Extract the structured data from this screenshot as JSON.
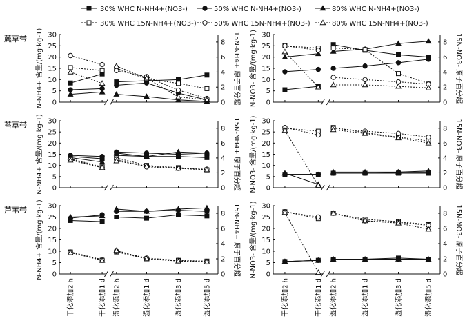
{
  "legend": [
    {
      "label": "30% WHC N-NH4+(NO3-)",
      "marker": "square",
      "filled": true,
      "dashed": false
    },
    {
      "label": "50% WHC N-NH4+(NO3-)",
      "marker": "circle",
      "filled": true,
      "dashed": false
    },
    {
      "label": "80% WHC N-NH4+(NO3-)",
      "marker": "triangle",
      "filled": true,
      "dashed": false
    },
    {
      "label": "30% WHC 15N-NH4+(NO3-)",
      "marker": "square",
      "filled": false,
      "dashed": true
    },
    {
      "label": "50% WHC 15N-NH4+(NO3-)",
      "marker": "circle",
      "filled": false,
      "dashed": true
    },
    {
      "label": "80% WHC 15N-NH4+(NO3-)",
      "marker": "triangle",
      "filled": false,
      "dashed": true
    }
  ],
  "row_labels": [
    "藨草带",
    "苔草带",
    "芦苇带"
  ],
  "x_categories": [
    "干化添加2 h",
    "干化添加1 d",
    "湿化添加2 h",
    "湿化添加1 d",
    "湿化添加3 d",
    "湿化添加5 d"
  ],
  "axis_labels": {
    "left_nh4": "N-NH4+ 含量/(mg·kg-1)",
    "right_nh4": "15N-NH4+ 原子百分超",
    "left_no3": "N-NO3- 含量/(mg·kg-1)",
    "right_no3": "15N-NO3- 原子百分超"
  },
  "y_left_ticks": [
    "0",
    "5",
    "10",
    "15",
    "20",
    "25",
    "30"
  ],
  "y_right_ticks": [
    "0",
    "2",
    "4",
    "6",
    "8"
  ],
  "chart_data": [
    {
      "type": "line",
      "row": "藨草带",
      "variable": "NH4",
      "ylim": [
        0,
        30
      ],
      "y2lim": [
        0,
        9
      ],
      "series": [
        {
          "name": "30% WHC N-NH4+",
          "axis": "left",
          "values": [
            8.5,
            12.5,
            9,
            9.5,
            10,
            12
          ]
        },
        {
          "name": "50% WHC N-NH4+",
          "axis": "left",
          "values": [
            5.5,
            6,
            7.5,
            8.5,
            4,
            1
          ]
        },
        {
          "name": "80% WHC N-NH4+",
          "axis": "left",
          "values": [
            3.5,
            4.5,
            3.5,
            2.5,
            1,
            0.3
          ]
        },
        {
          "name": "30% WHC 15N-NH4+",
          "axis": "right",
          "values": [
            4.6,
            4.2,
            4.5,
            3.1,
            2.5,
            1.8
          ]
        },
        {
          "name": "50% WHC 15N-NH4+",
          "axis": "right",
          "values": [
            6.2,
            5.0,
            4.2,
            3.4,
            1.6,
            0.5
          ]
        },
        {
          "name": "80% WHC 15N-NH4+",
          "axis": "right",
          "values": [
            4.0,
            2.5,
            4.8,
            3.2,
            0.7,
            0.3
          ]
        }
      ]
    },
    {
      "type": "line",
      "row": "藨草带",
      "variable": "NO3",
      "ylim": [
        0,
        30
      ],
      "y2lim": [
        0,
        9
      ],
      "series": [
        {
          "name": "30% WHC N-NO3-",
          "axis": "left",
          "values": [
            5.5,
            7,
            25.5,
            23,
            21,
            20
          ]
        },
        {
          "name": "50% WHC N-NO3-",
          "axis": "left",
          "values": [
            13.5,
            14.5,
            15,
            16,
            17.5,
            19
          ]
        },
        {
          "name": "80% WHC N-NO3-",
          "axis": "left",
          "values": [
            20,
            21.5,
            22.5,
            23.5,
            26,
            27
          ]
        },
        {
          "name": "30% WHC 15N-NO3-",
          "axis": "right",
          "values": [
            7.5,
            7.2,
            7.2,
            7.0,
            3.8,
            2.5
          ]
        },
        {
          "name": "50% WHC 15N-NO3-",
          "axis": "right",
          "values": [
            7.5,
            6.9,
            3.3,
            3.0,
            2.7,
            2.4
          ]
        },
        {
          "name": "80% WHC 15N-NO3-",
          "axis": "right",
          "values": [
            6.7,
            2.0,
            2.3,
            2.3,
            2.1,
            1.9
          ]
        }
      ]
    },
    {
      "type": "line",
      "row": "苔草带",
      "variable": "NH4",
      "ylim": [
        0,
        30
      ],
      "y2lim": [
        0,
        9
      ],
      "series": [
        {
          "name": "30% WHC N-NH4+",
          "axis": "left",
          "values": [
            14,
            13,
            14.5,
            14,
            14,
            13.5
          ]
        },
        {
          "name": "50% WHC N-NH4+",
          "axis": "left",
          "values": [
            14.5,
            14,
            16,
            15.5,
            15,
            15.5
          ]
        },
        {
          "name": "80% WHC N-NH4+",
          "axis": "left",
          "values": [
            13.5,
            11.5,
            15.5,
            14,
            16,
            15.5
          ]
        },
        {
          "name": "30% WHC 15N-NH4+",
          "axis": "right",
          "values": [
            3.9,
            2.8,
            4.0,
            3.0,
            2.7,
            2.4
          ]
        },
        {
          "name": "50% WHC 15N-NH4+",
          "axis": "right",
          "values": [
            3.8,
            2.7,
            3.8,
            2.8,
            2.6,
            2.5
          ]
        },
        {
          "name": "80% WHC 15N-NH4+",
          "axis": "right",
          "values": [
            3.7,
            2.7,
            3.6,
            2.9,
            2.6,
            2.4
          ]
        }
      ]
    },
    {
      "type": "line",
      "row": "苔草带",
      "variable": "NO3",
      "ylim": [
        0,
        30
      ],
      "y2lim": [
        0,
        9
      ],
      "series": [
        {
          "name": "30% WHC N-NO3-",
          "axis": "left",
          "values": [
            6,
            6,
            6.5,
            6.5,
            6.5,
            6.5
          ]
        },
        {
          "name": "50% WHC N-NO3-",
          "axis": "left",
          "values": [
            6,
            6,
            6.5,
            6.5,
            7,
            7
          ]
        },
        {
          "name": "80% WHC N-NO3-",
          "axis": "left",
          "values": [
            6.5,
            1.5,
            7,
            7,
            7,
            7.5
          ]
        },
        {
          "name": "30% WHC 15N-NO3-",
          "axis": "right",
          "values": [
            8.0,
            7.6,
            8.1,
            7.4,
            6.8,
            6.3
          ]
        },
        {
          "name": "50% WHC 15N-NO3-",
          "axis": "right",
          "values": [
            8.1,
            7.1,
            8.0,
            7.6,
            7.3,
            6.8
          ]
        },
        {
          "name": "80% WHC 15N-NO3-",
          "axis": "right",
          "values": [
            7.7,
            0.3,
            7.8,
            7.3,
            6.7,
            6.0
          ]
        }
      ]
    },
    {
      "type": "line",
      "row": "芦苇带",
      "variable": "NH4",
      "ylim": [
        0,
        30
      ],
      "y2lim": [
        0,
        9
      ],
      "series": [
        {
          "name": "30% WHC N-NH4+",
          "axis": "left",
          "values": [
            23.5,
            23,
            25,
            24.5,
            26,
            25.5
          ]
        },
        {
          "name": "50% WHC N-NH4+",
          "axis": "left",
          "values": [
            24.5,
            26,
            27.5,
            27.5,
            28,
            27.5
          ]
        },
        {
          "name": "80% WHC N-NH4+",
          "axis": "left",
          "values": [
            25,
            25.5,
            28.5,
            27.5,
            28.5,
            29
          ]
        },
        {
          "name": "30% WHC 15N-NH4+",
          "axis": "right",
          "values": [
            2.9,
            1.8,
            2.9,
            2.0,
            1.8,
            1.7
          ]
        },
        {
          "name": "50% WHC 15N-NH4+",
          "axis": "right",
          "values": [
            2.9,
            1.9,
            3.0,
            2.1,
            1.8,
            1.6
          ]
        },
        {
          "name": "80% WHC 15N-NH4+",
          "axis": "right",
          "values": [
            2.8,
            1.8,
            3.1,
            2.0,
            1.7,
            1.6
          ]
        }
      ]
    },
    {
      "type": "line",
      "row": "芦苇带",
      "variable": "NO3",
      "ylim": [
        0,
        30
      ],
      "y2lim": [
        0,
        9
      ],
      "series": [
        {
          "name": "30% WHC N-NO3-",
          "axis": "left",
          "values": [
            5.5,
            6,
            6.5,
            6.5,
            7,
            6.5
          ]
        },
        {
          "name": "50% WHC N-NO3-",
          "axis": "left",
          "values": [
            5.5,
            6,
            6.5,
            6.5,
            6.5,
            6.5
          ]
        },
        {
          "name": "80% WHC N-NO3-",
          "axis": "left",
          "values": [
            5.5,
            6,
            6.5,
            6.5,
            6.5,
            6.5
          ]
        },
        {
          "name": "30% WHC 15N-NO3-",
          "axis": "right",
          "values": [
            8.2,
            7.3,
            8.0,
            7.2,
            6.9,
            6.5
          ]
        },
        {
          "name": "50% WHC 15N-NO3-",
          "axis": "right",
          "values": [
            8.2,
            7.5,
            8.0,
            7.0,
            6.8,
            6.4
          ]
        },
        {
          "name": "80% WHC 15N-NO3-",
          "axis": "right",
          "values": [
            8.1,
            0.2,
            8.0,
            7.0,
            6.7,
            5.9
          ]
        }
      ]
    }
  ]
}
